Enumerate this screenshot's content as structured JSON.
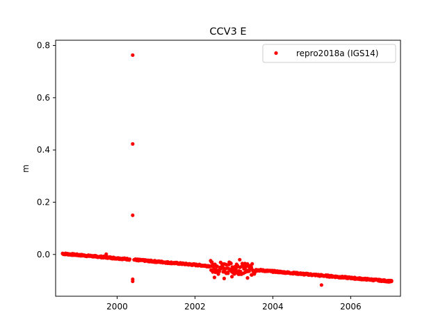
{
  "chart_data": {
    "type": "scatter",
    "title": "CCV3 E",
    "xlabel": "",
    "ylabel": "m",
    "xlim": [
      1998.42,
      2007.28
    ],
    "ylim": [
      -0.16,
      0.82
    ],
    "xticks": [
      2000,
      2002,
      2004,
      2006
    ],
    "xtick_labels": [
      "2000",
      "2002",
      "2004",
      "2006"
    ],
    "yticks": [
      0.0,
      0.2,
      0.4,
      0.6,
      0.8
    ],
    "ytick_labels": [
      "0.0",
      "0.2",
      "0.4",
      "0.6",
      "0.8"
    ],
    "grid": false,
    "legend": {
      "position": "top-right",
      "entries": [
        "repro2018a (IGS14)"
      ]
    },
    "series": [
      {
        "name": "repro2018a (IGS14)",
        "color": "#ff0000",
        "marker": "dot",
        "trend": {
          "x_start": 1998.6,
          "x_end": 2007.05,
          "y_start": 0.003,
          "y_end": -0.103
        },
        "points": [
          [
            1998.6,
            0.004
          ],
          [
            1998.75,
            0.001
          ],
          [
            1999.0,
            -0.004
          ],
          [
            1999.2,
            -0.006
          ],
          [
            1999.45,
            -0.009
          ],
          [
            1999.7,
            -0.012
          ],
          [
            1999.72,
            0.001
          ],
          [
            1999.9,
            -0.016
          ],
          [
            2000.1,
            -0.018
          ],
          [
            2000.3,
            -0.02
          ],
          [
            2000.4,
            0.763
          ],
          [
            2000.4,
            0.423
          ],
          [
            2000.4,
            0.15
          ],
          [
            2000.4,
            -0.095
          ],
          [
            2000.4,
            -0.103
          ],
          [
            2000.55,
            -0.024
          ],
          [
            2000.8,
            -0.027
          ],
          [
            2001.0,
            -0.03
          ],
          [
            2001.3,
            -0.034
          ],
          [
            2001.6,
            -0.037
          ],
          [
            2001.9,
            -0.04
          ],
          [
            2002.2,
            -0.043
          ],
          [
            2002.45,
            -0.046
          ],
          [
            2002.5,
            -0.088
          ],
          [
            2002.55,
            -0.06
          ],
          [
            2002.6,
            -0.075
          ],
          [
            2002.7,
            -0.05
          ],
          [
            2002.75,
            -0.092
          ],
          [
            2002.85,
            -0.068
          ],
          [
            2002.95,
            -0.085
          ],
          [
            2003.05,
            -0.055
          ],
          [
            2003.15,
            -0.02
          ],
          [
            2003.3,
            -0.045
          ],
          [
            2003.35,
            -0.09
          ],
          [
            2003.45,
            -0.078
          ],
          [
            2003.6,
            -0.062
          ],
          [
            2003.8,
            -0.064
          ],
          [
            2004.0,
            -0.066
          ],
          [
            2004.2,
            -0.069
          ],
          [
            2004.4,
            -0.071
          ],
          [
            2004.6,
            -0.074
          ],
          [
            2004.8,
            -0.078
          ],
          [
            2005.0,
            -0.08
          ],
          [
            2005.2,
            -0.083
          ],
          [
            2005.25,
            -0.117
          ],
          [
            2005.45,
            -0.086
          ],
          [
            2005.7,
            -0.089
          ],
          [
            2005.9,
            -0.091
          ],
          [
            2006.1,
            -0.094
          ],
          [
            2006.4,
            -0.097
          ],
          [
            2006.6,
            -0.099
          ],
          [
            2006.8,
            -0.101
          ],
          [
            2007.05,
            -0.103
          ]
        ]
      }
    ]
  }
}
